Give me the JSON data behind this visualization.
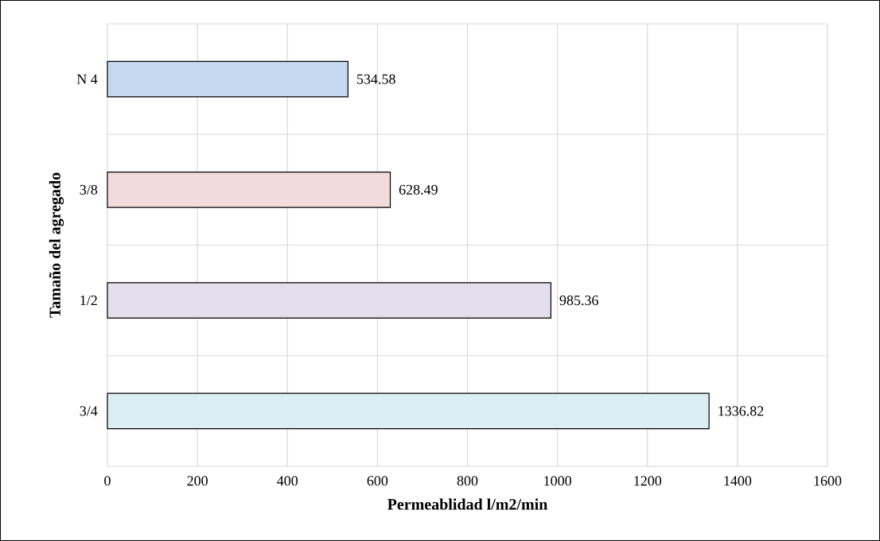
{
  "chart_data": {
    "type": "bar",
    "orientation": "horizontal",
    "xlabel": "Permeablidad l/m2/min",
    "ylabel": "Tamaño del agregado",
    "categories": [
      "N 4",
      "3/8",
      "1/2",
      "3/4"
    ],
    "values": [
      534.58,
      628.49,
      985.36,
      1336.82
    ],
    "colors": [
      "#c6d9f1",
      "#f2dcdb",
      "#e4dfec",
      "#daeef3"
    ],
    "xlim": [
      0,
      1600
    ],
    "xticks": [
      0,
      200,
      400,
      600,
      800,
      1000,
      1200,
      1400,
      1600
    ],
    "grid": true,
    "data_labels": true
  }
}
